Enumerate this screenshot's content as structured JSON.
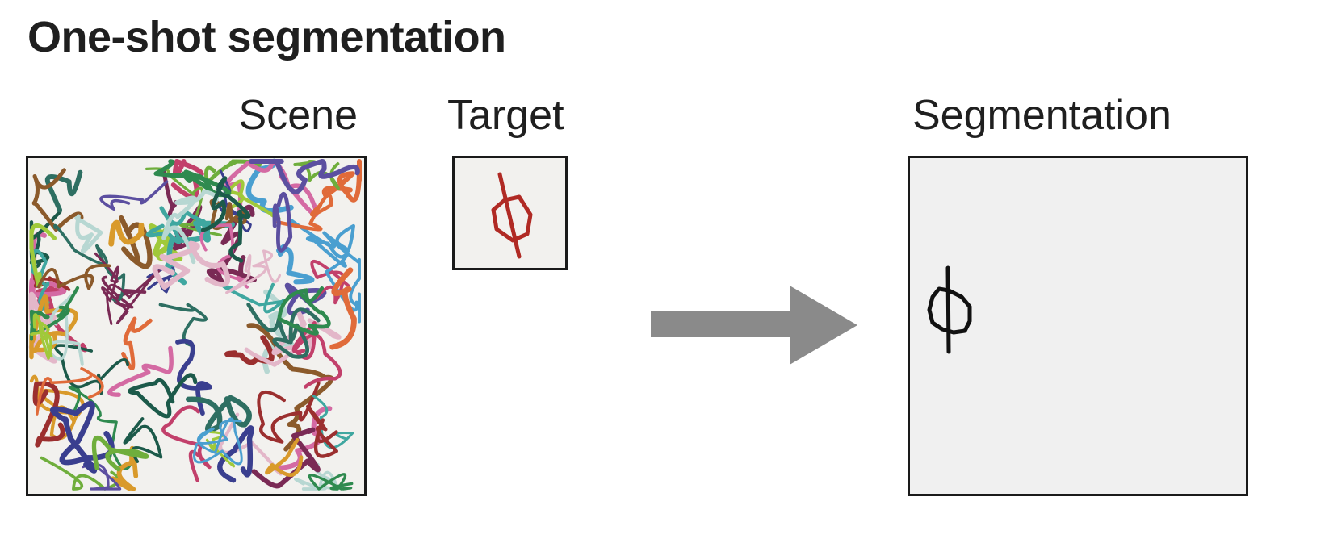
{
  "title": "One-shot segmentation",
  "panels": {
    "scene": {
      "label": "Scene"
    },
    "target": {
      "label": "Target",
      "stroke_color": "#b02a24"
    },
    "segmentation": {
      "label": "Segmentation",
      "stroke_color": "#111111"
    }
  },
  "colors": {
    "panel_background": "#f2f1ee",
    "arrow": "#8a8a8a",
    "border": "#1a1a1a",
    "scribble_palette": [
      "#2e6f62",
      "#7a2a55",
      "#3a3f8f",
      "#c2406b",
      "#6fae3c",
      "#d99a2b",
      "#4a9fd0",
      "#b7d7d2",
      "#8b5a2b",
      "#d46aa3",
      "#2f8a4f",
      "#a0c93a",
      "#5c4fa0",
      "#e06b3a",
      "#3fa7a0",
      "#9b2f2f",
      "#e3b7c9",
      "#1c5a4a"
    ]
  },
  "icons": {
    "arrow": "right-arrow-icon"
  }
}
